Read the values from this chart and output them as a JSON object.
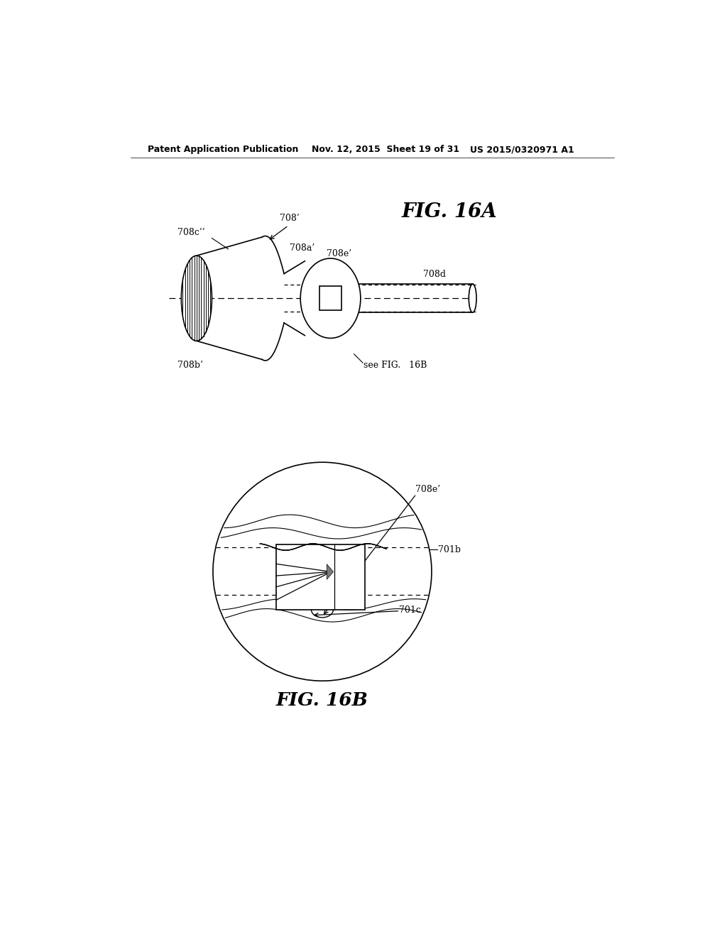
{
  "bg_color": "#ffffff",
  "header_left": "Patent Application Publication",
  "header_mid": "Nov. 12, 2015  Sheet 19 of 31",
  "header_right": "US 2015/0320971 A1",
  "fig16a_title": "FIG. 16A",
  "fig16b_title": "FIG. 16B",
  "line_color": "#000000",
  "labels": {
    "708_prime": "708’",
    "708c_dprime": "708c’’",
    "708a_prime": "708a’",
    "708e_prime_top": "708e’",
    "708d": "708d",
    "708b_prime": "708b’",
    "see_fig16b": "see FIG.   16B",
    "708e_prime_bot": "708e’",
    "701b": "701b",
    "701c": "701c"
  }
}
